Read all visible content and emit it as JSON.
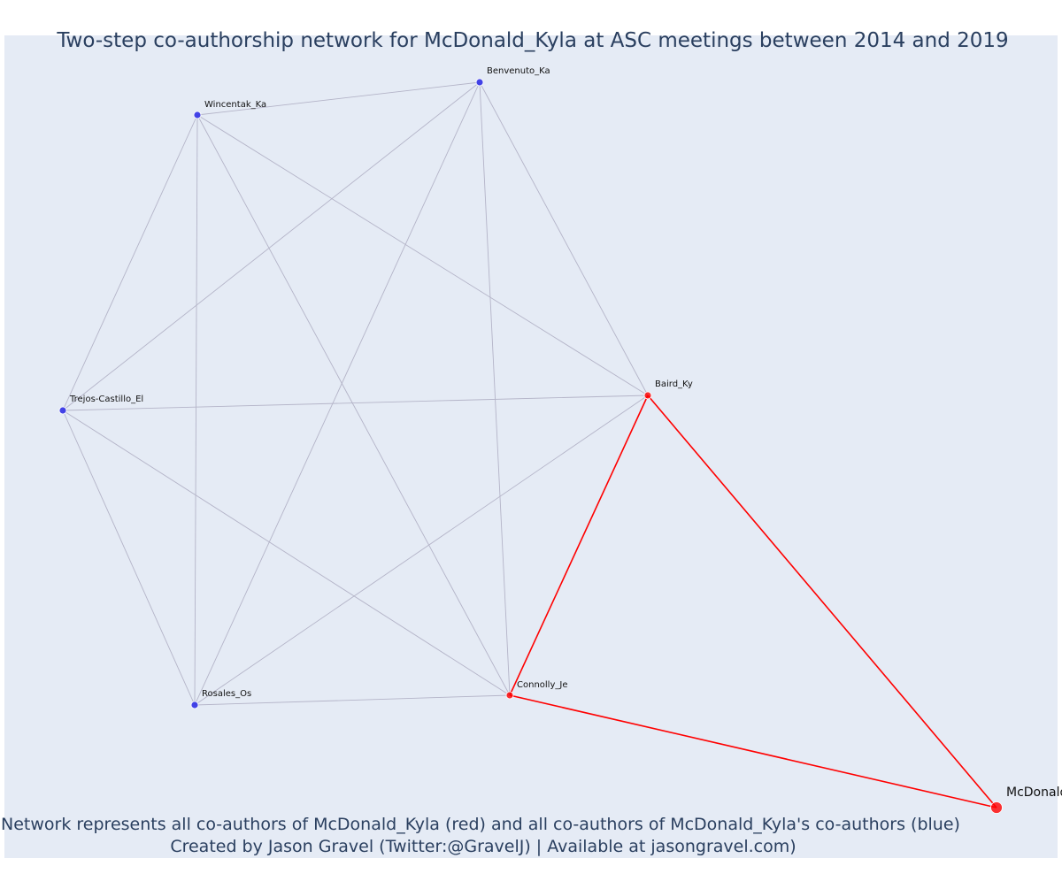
{
  "title": "Two-step co-authorship network for McDonald_Kyla at ASC meetings between 2014 and 2019",
  "caption": {
    "line1": "Network represents all co-authors of McDonald_Kyla (red) and all co-authors of McDonald_Kyla's co-authors (blue)",
    "line2": "Created by Jason Gravel (Twitter:@GravelJ) | Available at jasongravel.com)"
  },
  "colors": {
    "background": "#e5ebf5",
    "text": "#2a3f5f",
    "red": "#ff0000",
    "blue": "#3a3ae6",
    "gray_edge": "#b4b4c8"
  },
  "nodes": [
    {
      "id": "benvenuto",
      "label": "Benvenuto_Ka",
      "group": "second-degree",
      "color": "blue"
    },
    {
      "id": "wincentak",
      "label": "Wincentak_Ka",
      "group": "second-degree",
      "color": "blue"
    },
    {
      "id": "trejos",
      "label": "Trejos-Castillo_El",
      "group": "second-degree",
      "color": "blue"
    },
    {
      "id": "rosales",
      "label": "Rosales_Os",
      "group": "second-degree",
      "color": "blue"
    },
    {
      "id": "baird",
      "label": "Baird_Ky",
      "group": "co-author",
      "color": "red"
    },
    {
      "id": "connolly",
      "label": "Connolly_Je",
      "group": "co-author",
      "color": "red"
    },
    {
      "id": "mcdonald",
      "label": "McDonald_Kyla",
      "group": "focal",
      "color": "red"
    }
  ],
  "edges": [
    {
      "source": "wincentak",
      "target": "benvenuto",
      "color": "gray"
    },
    {
      "source": "wincentak",
      "target": "trejos",
      "color": "gray"
    },
    {
      "source": "wincentak",
      "target": "rosales",
      "color": "gray"
    },
    {
      "source": "wincentak",
      "target": "connolly",
      "color": "gray"
    },
    {
      "source": "wincentak",
      "target": "baird",
      "color": "gray"
    },
    {
      "source": "benvenuto",
      "target": "trejos",
      "color": "gray"
    },
    {
      "source": "benvenuto",
      "target": "rosales",
      "color": "gray"
    },
    {
      "source": "benvenuto",
      "target": "connolly",
      "color": "gray"
    },
    {
      "source": "benvenuto",
      "target": "baird",
      "color": "gray"
    },
    {
      "source": "trejos",
      "target": "baird",
      "color": "gray"
    },
    {
      "source": "trejos",
      "target": "rosales",
      "color": "gray"
    },
    {
      "source": "trejos",
      "target": "connolly",
      "color": "gray"
    },
    {
      "source": "rosales",
      "target": "connolly",
      "color": "gray"
    },
    {
      "source": "rosales",
      "target": "baird",
      "color": "gray"
    },
    {
      "source": "baird",
      "target": "connolly",
      "color": "red"
    },
    {
      "source": "baird",
      "target": "mcdonald",
      "color": "red"
    },
    {
      "source": "connolly",
      "target": "mcdonald",
      "color": "red"
    }
  ]
}
